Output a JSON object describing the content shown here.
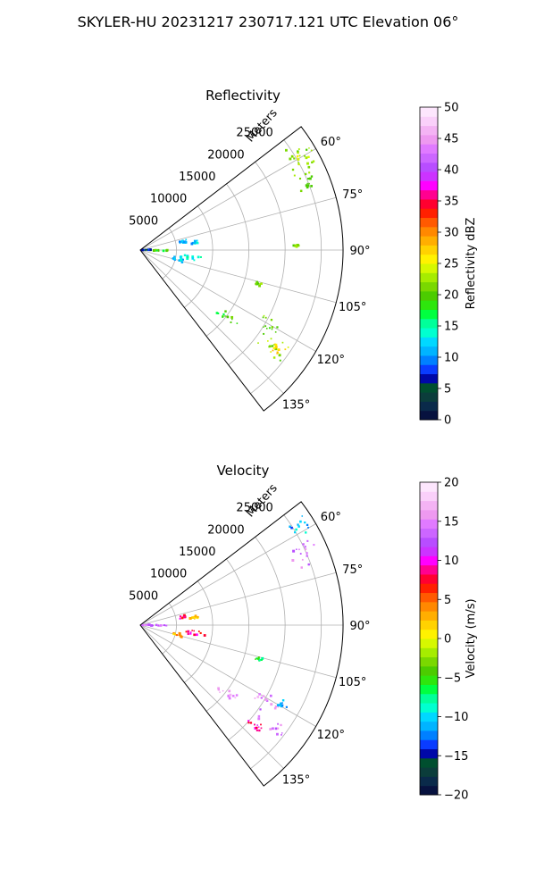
{
  "figure": {
    "suptitle": "SKYLER-HU  20231217  230717.121 UTC Elevation 06°"
  },
  "chart_data": [
    {
      "type": "heatmap",
      "subtype": "polar-sector (PPI)",
      "title": "Reflectivity",
      "radial_label": "Meters",
      "radial_ticks": [
        5000,
        10000,
        15000,
        20000,
        25000
      ],
      "radial_tick_labels": [
        "5000",
        "10000",
        "15000",
        "20000",
        "25000"
      ],
      "rmax": 28000,
      "azimuth_range_deg": [
        52.5,
        142.5
      ],
      "azimuth_ticks_deg": [
        60,
        75,
        90,
        105,
        120,
        135
      ],
      "azimuth_tick_labels": [
        "60°",
        "75°",
        "90°",
        "105°",
        "120°",
        "135°"
      ],
      "grid": true,
      "colorbar": {
        "label": "Reflectivity dBZ",
        "range": [
          0,
          50
        ],
        "ticks": [
          0,
          5,
          10,
          15,
          20,
          25,
          30,
          35,
          40,
          45,
          50
        ],
        "tick_labels": [
          "0",
          "5",
          "10",
          "15",
          "20",
          "25",
          "30",
          "35",
          "40",
          "45",
          "50"
        ],
        "colors": [
          "#07123f",
          "#0a2a4a",
          "#0b3d3b",
          "#004f2f",
          "#0008a8",
          "#0a3cff",
          "#0080ff",
          "#00b4ff",
          "#00d8ff",
          "#00ffd0",
          "#00ff9a",
          "#00ff40",
          "#2ee60d",
          "#4ccc00",
          "#7ad800",
          "#a6ec00",
          "#d6f800",
          "#fff200",
          "#ffd200",
          "#ffae00",
          "#ff8800",
          "#ff5a00",
          "#ff2000",
          "#ff0030",
          "#ff0090",
          "#ff00ff",
          "#cc33ff",
          "#b84dff",
          "#cc66ff",
          "#e07aff",
          "#ee99f0",
          "#f4b3f4",
          "#fad0fa",
          "#fde6fd"
        ]
      },
      "echoes": [
        {
          "az": [
            55,
            66
          ],
          "r": [
            23000,
            27600
          ],
          "value": 22
        },
        {
          "az": [
            65,
            72
          ],
          "r": [
            22500,
            27000
          ],
          "value": 21
        },
        {
          "az": [
            58,
            63
          ],
          "r": [
            24500,
            27500
          ],
          "value": 24
        },
        {
          "az": [
            77,
            81
          ],
          "r": [
            5400,
            6700
          ],
          "value": 12
        },
        {
          "az": [
            80,
            84
          ],
          "r": [
            6800,
            8200
          ],
          "value": 12
        },
        {
          "az": [
            89,
            93
          ],
          "r": [
            1300,
            4000
          ],
          "value": 19
        },
        {
          "az": [
            95,
            101
          ],
          "r": [
            5200,
            10000
          ],
          "value": 14
        },
        {
          "az": [
            100,
            107
          ],
          "r": [
            4500,
            6500
          ],
          "value": 12
        },
        {
          "az": [
            87,
            89
          ],
          "r": [
            0,
            1800
          ],
          "value": 6
        },
        {
          "az": [
            125,
            131
          ],
          "r": [
            13500,
            17000
          ],
          "value": 19
        },
        {
          "az": [
            117,
            123
          ],
          "r": [
            18500,
            22500
          ],
          "value": 21
        },
        {
          "az": [
            122,
            130
          ],
          "r": [
            20000,
            25500
          ],
          "value": 22
        },
        {
          "az": [
            124,
            128
          ],
          "r": [
            22500,
            24500
          ],
          "value": 27
        },
        {
          "az": [
            88,
            89
          ],
          "r": [
            21000,
            22000
          ],
          "value": 22
        },
        {
          "az": [
            105,
            107
          ],
          "r": [
            16500,
            17500
          ],
          "value": 21
        }
      ]
    },
    {
      "type": "heatmap",
      "subtype": "polar-sector (PPI)",
      "title": "Velocity",
      "radial_label": "Meters",
      "radial_ticks": [
        5000,
        10000,
        15000,
        20000,
        25000
      ],
      "radial_tick_labels": [
        "5000",
        "10000",
        "15000",
        "20000",
        "25000"
      ],
      "rmax": 28000,
      "azimuth_range_deg": [
        52.5,
        142.5
      ],
      "azimuth_ticks_deg": [
        60,
        75,
        90,
        105,
        120,
        135
      ],
      "azimuth_tick_labels": [
        "60°",
        "75°",
        "90°",
        "105°",
        "120°",
        "135°"
      ],
      "grid": true,
      "colorbar": {
        "label": "Velocity (m/s)",
        "range": [
          -20,
          20
        ],
        "ticks": [
          -20,
          -15,
          -10,
          -5,
          0,
          5,
          10,
          15,
          20
        ],
        "tick_labels": [
          "−20",
          "−15",
          "−10",
          "−5",
          "0",
          "5",
          "10",
          "15",
          "20"
        ],
        "colors": [
          "#07123f",
          "#0a2a4a",
          "#0b3d3b",
          "#004f2f",
          "#0008a8",
          "#0a3cff",
          "#0080ff",
          "#00b4ff",
          "#00d8ff",
          "#00ffd0",
          "#00ff9a",
          "#00ff40",
          "#2ee60d",
          "#4ccc00",
          "#7ad800",
          "#a6ec00",
          "#d6f800",
          "#fff200",
          "#ffd200",
          "#ffae00",
          "#ff8800",
          "#ff5a00",
          "#ff2000",
          "#ff0030",
          "#ff0090",
          "#ff00ff",
          "#cc33ff",
          "#b84dff",
          "#cc66ff",
          "#e07aff",
          "#ee99f0",
          "#f4b3f4",
          "#fad0fa",
          "#fde6fd"
        ]
      },
      "echoes": [
        {
          "az": [
            55,
            62
          ],
          "r": [
            24000,
            27600
          ],
          "value": -11
        },
        {
          "az": [
            62,
            72
          ],
          "r": [
            22500,
            27000
          ],
          "value": 14
        },
        {
          "az": [
            77,
            81
          ],
          "r": [
            5400,
            6700
          ],
          "value": 8
        },
        {
          "az": [
            80,
            84
          ],
          "r": [
            6800,
            8200
          ],
          "value": 2
        },
        {
          "az": [
            89,
            93
          ],
          "r": [
            1300,
            4000
          ],
          "value": 14
        },
        {
          "az": [
            95,
            101
          ],
          "r": [
            6000,
            10000
          ],
          "value": 8
        },
        {
          "az": [
            100,
            107
          ],
          "r": [
            4500,
            6500
          ],
          "value": 3
        },
        {
          "az": [
            87,
            89
          ],
          "r": [
            0,
            1800
          ],
          "value": 14
        },
        {
          "az": [
            125,
            131
          ],
          "r": [
            13500,
            17000
          ],
          "value": 15
        },
        {
          "az": [
            117,
            123
          ],
          "r": [
            18500,
            22500
          ],
          "value": 15
        },
        {
          "az": [
            117,
            121
          ],
          "r": [
            21500,
            23500
          ],
          "value": -12
        },
        {
          "az": [
            124,
            130
          ],
          "r": [
            20000,
            25500
          ],
          "value": 14
        },
        {
          "az": [
            128,
            133
          ],
          "r": [
            19500,
            22500
          ],
          "value": 9
        },
        {
          "az": [
            105,
            107
          ],
          "r": [
            16500,
            17500
          ],
          "value": -6
        }
      ]
    }
  ]
}
